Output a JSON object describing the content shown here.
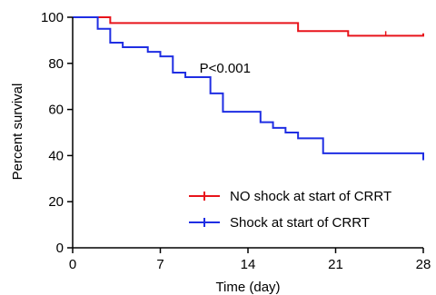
{
  "chart_data": {
    "type": "line",
    "title": "",
    "xlabel": "Time (day)",
    "ylabel": "Percent survival",
    "xlim": [
      0,
      28
    ],
    "ylim": [
      0,
      100
    ],
    "xticks": [
      0,
      7,
      14,
      21,
      28
    ],
    "yticks": [
      0,
      20,
      40,
      60,
      80,
      100
    ],
    "xtick_labels": [
      "0",
      "7",
      "14",
      "21",
      "28"
    ],
    "ytick_labels": [
      "0",
      "20",
      "40",
      "60",
      "80",
      "100"
    ],
    "grid": false,
    "legend_position": "bottom-right",
    "step": true,
    "annotations": [
      {
        "text": "P<0.001",
        "x": 11,
        "y": 78
      }
    ],
    "series": [
      {
        "name": "NO shock at start of CRRT",
        "color": "#e8141b",
        "points": [
          [
            0,
            100
          ],
          [
            3,
            100
          ],
          [
            3,
            97.5
          ],
          [
            18,
            97.5
          ],
          [
            18,
            94
          ],
          [
            22,
            94
          ],
          [
            22,
            92
          ],
          [
            28,
            92
          ],
          [
            28,
            93
          ]
        ],
        "censor_x": [
          25
        ]
      },
      {
        "name": "Shock at start of CRRT",
        "color": "#1f2ee3",
        "points": [
          [
            0,
            100
          ],
          [
            2,
            100
          ],
          [
            2,
            95
          ],
          [
            3,
            95
          ],
          [
            3,
            89
          ],
          [
            4,
            89
          ],
          [
            4,
            87
          ],
          [
            6,
            87
          ],
          [
            6,
            85
          ],
          [
            7,
            85
          ],
          [
            7,
            83
          ],
          [
            8,
            83
          ],
          [
            8,
            76
          ],
          [
            9,
            76
          ],
          [
            9,
            74
          ],
          [
            11,
            74
          ],
          [
            11,
            67
          ],
          [
            12,
            67
          ],
          [
            12,
            59
          ],
          [
            15,
            59
          ],
          [
            15,
            54.5
          ],
          [
            16,
            54.5
          ],
          [
            16,
            52
          ],
          [
            17,
            52
          ],
          [
            17,
            50
          ],
          [
            18,
            50
          ],
          [
            18,
            47.5
          ],
          [
            20,
            47.5
          ],
          [
            20,
            41
          ],
          [
            28,
            41
          ],
          [
            28,
            38
          ]
        ],
        "censor_x": []
      }
    ]
  }
}
